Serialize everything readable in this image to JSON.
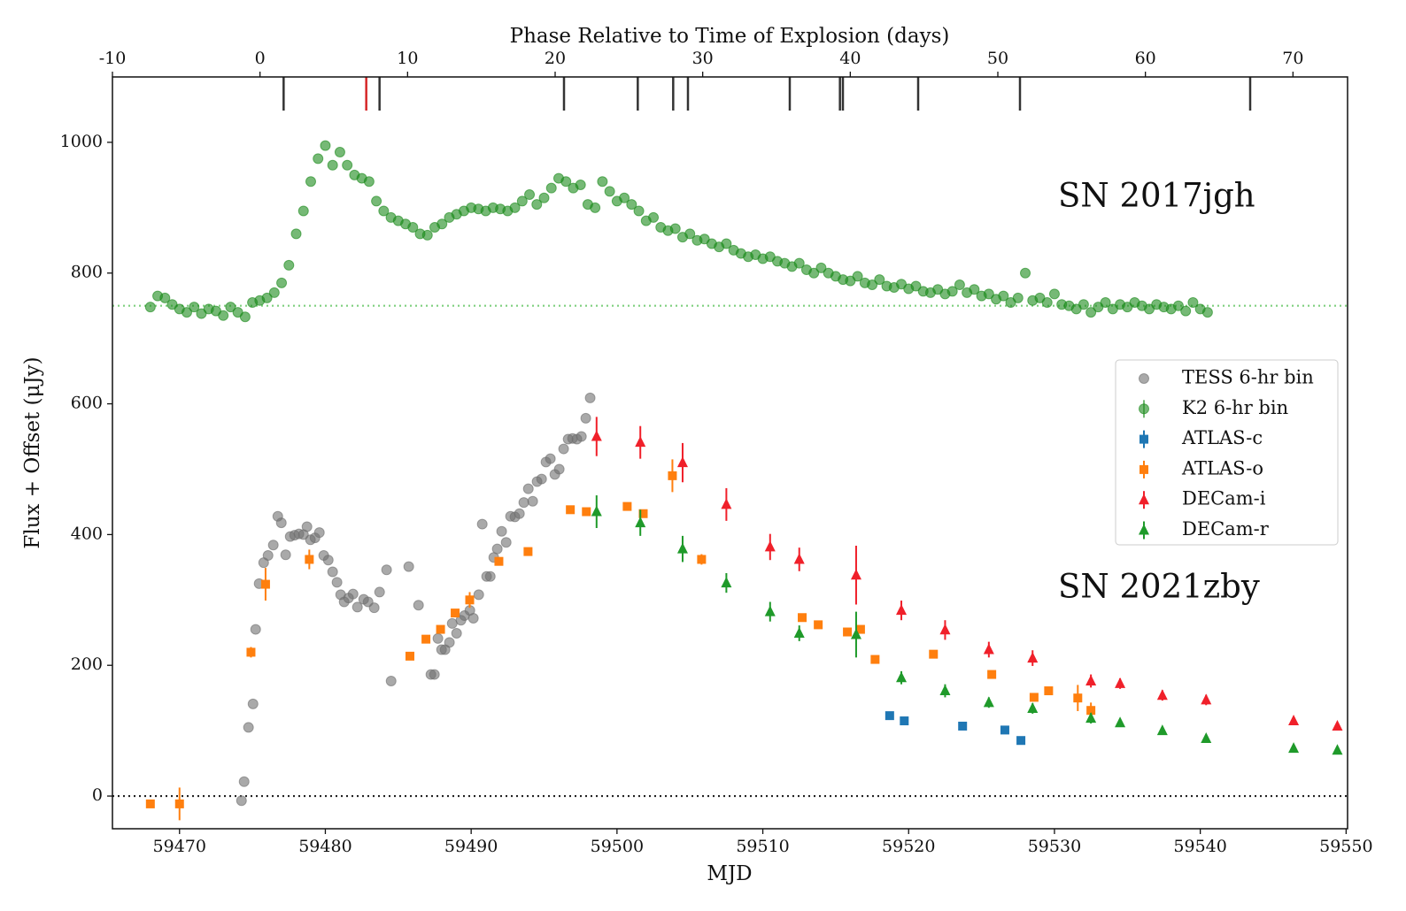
{
  "chart_data": {
    "type": "scatter",
    "xlabel": "MJD",
    "ylabel": "Flux + Offset (μJy)",
    "x2label": "Phase Relative to Time of Explosion (days)",
    "xlim": [
      59465.4,
      59550.1
    ],
    "xticks": [
      59470,
      59480,
      59490,
      59500,
      59510,
      59520,
      59530,
      59540,
      59550
    ],
    "ylim": [
      -50,
      1100
    ],
    "yticks": [
      0,
      200,
      400,
      600,
      800,
      1000
    ],
    "x2lim": [
      -10,
      73.7
    ],
    "x2ticks": [
      -10,
      0,
      10,
      20,
      30,
      40,
      50,
      60,
      70
    ],
    "grid": false,
    "legend": "center right",
    "hlines": [
      {
        "y": 750,
        "color": "#7fcf7f"
      },
      {
        "y": 0,
        "color": "#222222"
      }
    ],
    "epoch_marks": {
      "x2": [
        1.6,
        7.2,
        8.1,
        20.6,
        25.6,
        28.0,
        29.0,
        35.9,
        39.3,
        39.5,
        44.6,
        51.5,
        67.1
      ],
      "colors": [
        "#333333",
        "#d62728",
        "#333333",
        "#333333",
        "#333333",
        "#333333",
        "#333333",
        "#333333",
        "#333333",
        "#333333",
        "#333333",
        "#333333",
        "#333333"
      ]
    },
    "annotations": [
      {
        "text": "SN 2017jgh",
        "color": "#1a8a1a"
      },
      {
        "text": "SN 2021zby",
        "color": "#222222"
      }
    ],
    "series": [
      {
        "name": "TESS 6-hr bin",
        "color": "#707070",
        "marker": "circle",
        "opacity": 0.6,
        "x": [
          59474.25,
          59474.43,
          59474.73,
          59475.04,
          59475.22,
          59475.46,
          59475.77,
          59476.07,
          59476.43,
          59476.74,
          59476.98,
          59477.28,
          59477.59,
          59477.89,
          59478.19,
          59478.5,
          59478.74,
          59478.98,
          59479.29,
          59479.59,
          59479.89,
          59480.2,
          59480.5,
          59480.8,
          59481.05,
          59481.29,
          59481.59,
          59481.9,
          59482.2,
          59482.63,
          59482.93,
          59483.35,
          59483.72,
          59484.2,
          59484.51,
          59485.72,
          59486.39,
          59487.24,
          59487.48,
          59487.72,
          59487.97,
          59488.21,
          59488.51,
          59488.7,
          59489.0,
          59489.3,
          59489.54,
          59489.91,
          59490.15,
          59490.52,
          59490.76,
          59491.06,
          59491.31,
          59491.55,
          59491.79,
          59492.09,
          59492.4,
          59492.7,
          59493.0,
          59493.31,
          59493.61,
          59493.92,
          59494.22,
          59494.52,
          59494.83,
          59495.13,
          59495.43,
          59495.74,
          59496.04,
          59496.34,
          59496.65,
          59496.95,
          59497.25,
          59497.56,
          59497.86,
          59498.16
        ],
        "values": [
          -7,
          22,
          105,
          141,
          255,
          325,
          357,
          368,
          384,
          428,
          418,
          369,
          397,
          399,
          401,
          400,
          412,
          392,
          395,
          403,
          368,
          361,
          343,
          327,
          308,
          297,
          303,
          309,
          289,
          301,
          297,
          288,
          312,
          346,
          176,
          351,
          292,
          186,
          186,
          241,
          224,
          224,
          235,
          264,
          249,
          269,
          276,
          284,
          272,
          308,
          416,
          336,
          336,
          365,
          378,
          405,
          388,
          428,
          427,
          432,
          449,
          470,
          451,
          481,
          485,
          511,
          516,
          492,
          500,
          531,
          546,
          547,
          546,
          550,
          578,
          609
        ]
      },
      {
        "name": "K2 6-hr bin",
        "color": "#1a8a1a",
        "marker": "circle",
        "opacity": 0.6,
        "x": [
          59468,
          59468.5,
          59469,
          59469.5,
          59470,
          59470.5,
          59471,
          59471.5,
          59472,
          59472.5,
          59473,
          59473.5,
          59474,
          59474.5,
          59475,
          59475.5,
          59476,
          59476.5,
          59477,
          59477.5,
          59478,
          59478.5,
          59479,
          59479.5,
          59480,
          59480.5,
          59481,
          59481.5,
          59482,
          59482.5,
          59483,
          59483.5,
          59484,
          59484.5,
          59485,
          59485.5,
          59486,
          59486.5,
          59487,
          59487.5,
          59488,
          59488.5,
          59489,
          59489.5,
          59490,
          59490.5,
          59491,
          59491.5,
          59492,
          59492.5,
          59493,
          59493.5,
          59494,
          59494.5,
          59495,
          59495.5,
          59496,
          59496.5,
          59497,
          59497.5,
          59498,
          59498.5,
          59499,
          59499.5,
          59500,
          59500.5,
          59501,
          59501.5,
          59502,
          59502.5,
          59503,
          59503.5,
          59504,
          59504.5,
          59505,
          59505.5,
          59506,
          59506.5,
          59507,
          59507.5,
          59508,
          59508.5,
          59509,
          59509.5,
          59510,
          59510.5,
          59511,
          59511.5,
          59512,
          59512.5,
          59513,
          59513.5,
          59514,
          59514.5,
          59515,
          59515.5,
          59516,
          59516.5,
          59517,
          59517.5,
          59518,
          59518.5,
          59519,
          59519.5,
          59520,
          59520.5,
          59521,
          59521.5,
          59522,
          59522.5,
          59523,
          59523.5,
          59524,
          59524.5,
          59525,
          59525.5,
          59526,
          59526.5,
          59527,
          59527.5,
          59528,
          59528.5,
          59529,
          59529.5,
          59530,
          59530.5,
          59531,
          59531.5,
          59532,
          59532.5,
          59533,
          59533.5,
          59534,
          59534.5,
          59535,
          59535.5,
          59536,
          59536.5,
          59537,
          59537.5,
          59538,
          59538.5,
          59539,
          59539.5,
          59540,
          59540.5
        ],
        "values": [
          748,
          765,
          762,
          752,
          745,
          740,
          748,
          738,
          745,
          742,
          735,
          748,
          740,
          733,
          755,
          758,
          762,
          770,
          785,
          812,
          860,
          895,
          940,
          975,
          995,
          965,
          985,
          965,
          950,
          945,
          940,
          910,
          895,
          885,
          880,
          875,
          870,
          860,
          858,
          870,
          875,
          885,
          890,
          895,
          900,
          898,
          895,
          900,
          898,
          895,
          900,
          910,
          920,
          905,
          915,
          930,
          945,
          940,
          930,
          935,
          905,
          900,
          940,
          925,
          910,
          915,
          905,
          895,
          880,
          885,
          870,
          865,
          868,
          855,
          860,
          850,
          852,
          845,
          840,
          845,
          835,
          830,
          825,
          828,
          822,
          825,
          818,
          815,
          810,
          815,
          805,
          800,
          808,
          800,
          795,
          790,
          788,
          795,
          785,
          782,
          790,
          780,
          778,
          783,
          776,
          780,
          772,
          770,
          775,
          768,
          772,
          782,
          770,
          775,
          765,
          768,
          760,
          765,
          755,
          762,
          800,
          758,
          762,
          755,
          768,
          752,
          750,
          745,
          752,
          740,
          748,
          755,
          745,
          752,
          748,
          755,
          750,
          745,
          752,
          748,
          745,
          750,
          742,
          755,
          745,
          740
        ]
      },
      {
        "name": "ATLAS-c",
        "color": "#1f77b4",
        "marker": "square",
        "opacity": 1,
        "x": [
          59518.7,
          59519.7,
          59523.7,
          59526.6,
          59527.7
        ],
        "values": [
          123,
          115,
          107,
          101,
          85
        ],
        "errors": [
          5,
          5,
          5,
          5,
          5
        ]
      },
      {
        "name": "ATLAS-o",
        "color": "#ff7f0e",
        "marker": "square",
        "opacity": 1,
        "x": [
          59468.0,
          59470.0,
          59474.9,
          59475.9,
          59478.9,
          59485.8,
          59486.9,
          59487.9,
          59488.9,
          59489.9,
          59491.9,
          59493.9,
          59496.8,
          59497.9,
          59500.7,
          59501.8,
          59503.8,
          59505.8,
          59512.7,
          59513.8,
          59515.8,
          59516.7,
          59517.7,
          59521.7,
          59525.7,
          59528.6,
          59529.6,
          59531.6,
          59532.5
        ],
        "values": [
          -12,
          -12,
          220,
          324,
          362,
          214,
          240,
          255,
          280,
          300,
          359,
          374,
          438,
          435,
          443,
          432,
          490,
          362,
          273,
          262,
          251,
          255,
          209,
          217,
          186,
          151,
          161,
          150,
          131
        ],
        "errors": [
          6,
          25,
          8,
          25,
          15,
          6,
          6,
          6,
          6,
          12,
          6,
          6,
          6,
          6,
          6,
          6,
          25,
          8,
          6,
          6,
          6,
          6,
          6,
          6,
          6,
          6,
          6,
          20,
          12
        ]
      },
      {
        "name": "DECam-i",
        "color": "#f0202a",
        "marker": "triangle",
        "opacity": 1,
        "x": [
          59498.6,
          59501.6,
          59504.5,
          59507.5,
          59510.5,
          59512.5,
          59516.4,
          59519.5,
          59522.5,
          59525.5,
          59528.5,
          59532.5,
          59534.5,
          59537.4,
          59540.4,
          59546.4,
          59549.4
        ],
        "values": [
          550,
          541,
          510,
          446,
          381,
          362,
          338,
          284,
          254,
          224,
          211,
          176,
          172,
          154,
          147,
          115,
          107
        ],
        "errors": [
          30,
          25,
          30,
          25,
          20,
          18,
          45,
          15,
          15,
          12,
          12,
          10,
          8,
          8,
          8,
          6,
          6
        ]
      },
      {
        "name": "DECam-r",
        "color": "#1f9a2a",
        "marker": "triangle",
        "opacity": 1,
        "x": [
          59498.6,
          59501.6,
          59504.5,
          59507.5,
          59510.5,
          59512.5,
          59516.4,
          59519.5,
          59522.5,
          59525.5,
          59528.5,
          59532.5,
          59534.5,
          59537.4,
          59540.4,
          59546.4,
          59549.4
        ],
        "values": [
          435,
          418,
          378,
          326,
          282,
          249,
          247,
          181,
          161,
          143,
          134,
          119,
          112,
          100,
          88,
          73,
          70
        ],
        "errors": [
          25,
          20,
          20,
          15,
          15,
          12,
          35,
          10,
          10,
          8,
          8,
          8,
          6,
          6,
          6,
          5,
          5
        ]
      }
    ]
  }
}
